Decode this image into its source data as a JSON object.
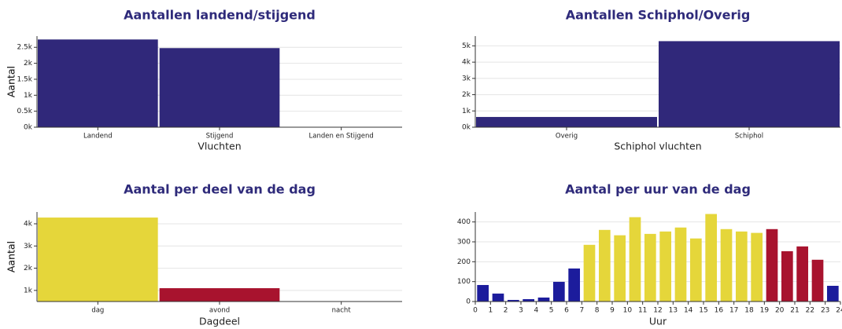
{
  "chart_data": [
    {
      "type": "bar",
      "title": "Aantallen landend/stijgend",
      "x_label": "Vluchten",
      "y_label": "Aantal",
      "categories": [
        "Landend",
        "Stijgend",
        "Landen en Stijgend"
      ],
      "values": [
        2745,
        2475,
        0
      ],
      "color": "#30287a",
      "ylim": [
        0,
        2850
      ],
      "yticks": [
        {
          "value": 0,
          "label": "0k"
        },
        {
          "value": 500,
          "label": "0.5k"
        },
        {
          "value": 1000,
          "label": "1k"
        },
        {
          "value": 1500,
          "label": "1.5k"
        },
        {
          "value": 2000,
          "label": "2k"
        },
        {
          "value": 2500,
          "label": "2.5k"
        }
      ],
      "grid": true
    },
    {
      "type": "bar",
      "title": "Aantallen Schiphol/Overig",
      "x_label": "Schiphol vluchten",
      "y_label": "Aantal",
      "categories": [
        "Overig",
        "Schiphol"
      ],
      "values": [
        630,
        5290
      ],
      "color": "#30287a",
      "ylim": [
        0,
        5600
      ],
      "yticks": [
        {
          "value": 0,
          "label": "0k"
        },
        {
          "value": 1000,
          "label": "1k"
        },
        {
          "value": 2000,
          "label": "2k"
        },
        {
          "value": 3000,
          "label": "3k"
        },
        {
          "value": 4000,
          "label": "4k"
        },
        {
          "value": 5000,
          "label": "5k"
        }
      ],
      "grid": true
    },
    {
      "type": "bar",
      "title": "Aantal per deel van de dag",
      "x_label": "Dagdeel",
      "y_label": "Aantal",
      "categories": [
        "dag",
        "avond",
        "nacht"
      ],
      "values": [
        4280,
        1100,
        0
      ],
      "colors": [
        "#e5d63a",
        "#a8132e",
        "#30287a"
      ],
      "ylim": [
        500,
        4530
      ],
      "yticks": [
        {
          "value": 1000,
          "label": "1k"
        },
        {
          "value": 2000,
          "label": "2k"
        },
        {
          "value": 3000,
          "label": "3k"
        },
        {
          "value": 4000,
          "label": "4k"
        }
      ],
      "grid": true
    },
    {
      "type": "histogram",
      "title": "Aantal per uur van de dag",
      "x_label": "Uur",
      "y_label": "Aantal",
      "bins": [
        0,
        1,
        2,
        3,
        4,
        5,
        6,
        7,
        8,
        9,
        10,
        11,
        12,
        13,
        14,
        15,
        16,
        17,
        18,
        19,
        20,
        21,
        22,
        23,
        24
      ],
      "values": [
        83,
        40,
        8,
        12,
        20,
        99,
        166,
        285,
        360,
        333,
        424,
        340,
        352,
        372,
        317,
        440,
        364,
        352,
        345,
        364,
        253,
        277,
        210,
        79
      ],
      "colors": [
        "#1c1c9c",
        "#1c1c9c",
        "#1c1c9c",
        "#1c1c9c",
        "#1c1c9c",
        "#1c1c9c",
        "#1c1c9c",
        "#e5d63a",
        "#e5d63a",
        "#e5d63a",
        "#e5d63a",
        "#e5d63a",
        "#e5d63a",
        "#e5d63a",
        "#e5d63a",
        "#e5d63a",
        "#e5d63a",
        "#e5d63a",
        "#e5d63a",
        "#a8132e",
        "#a8132e",
        "#a8132e",
        "#a8132e",
        "#1c1c9c"
      ],
      "xlim": [
        0,
        24
      ],
      "xticks": [
        0,
        1,
        2,
        3,
        4,
        5,
        6,
        7,
        8,
        9,
        10,
        11,
        12,
        13,
        14,
        15,
        16,
        17,
        18,
        19,
        20,
        21,
        22,
        23,
        24
      ],
      "ylim": [
        0,
        450
      ],
      "yticks": [
        0,
        100,
        200,
        300,
        400
      ],
      "grid": true
    }
  ]
}
